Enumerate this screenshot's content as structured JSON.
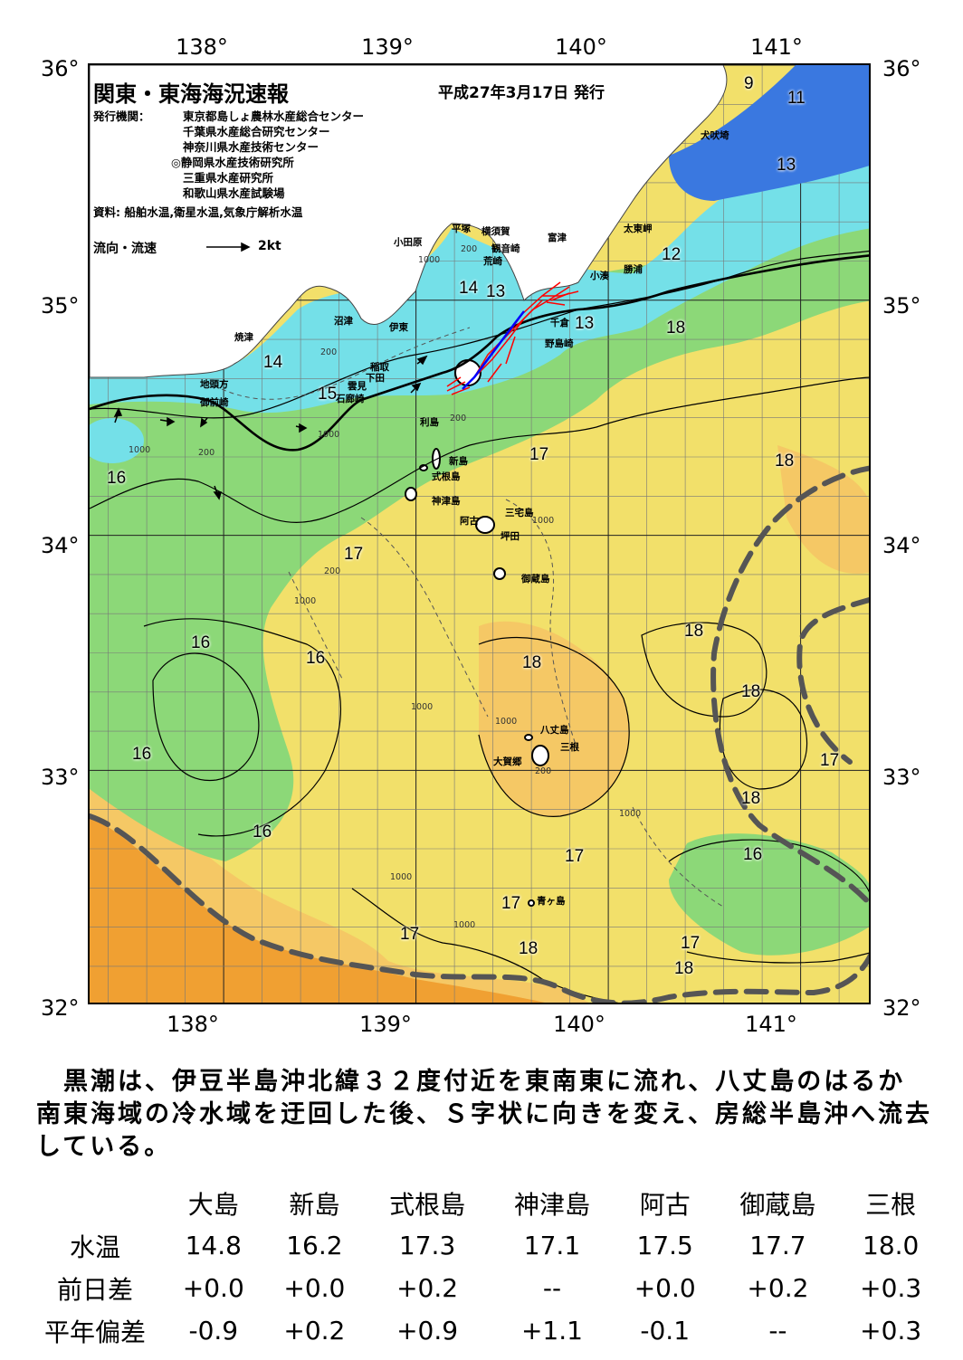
{
  "axes": {
    "lon_top": [
      "138°",
      "139°",
      "140°",
      "141°"
    ],
    "lon_bottom": [
      "138°",
      "139°",
      "140°",
      "141°"
    ],
    "lat_left": [
      "36°",
      "35°",
      "34°",
      "33°",
      "32°"
    ],
    "lat_right": [
      "36°",
      "35°",
      "34°",
      "33°",
      "32°"
    ]
  },
  "header": {
    "title": "関東・東海海況速報",
    "issue_date": "平成27年3月17日 発行",
    "issuer_label": "発行機関：",
    "issuers": [
      "東京都島しょ農林水産総合センター",
      "千葉県水産総合研究センター",
      "神奈川県水産技術センター",
      "◎静岡県水産技術研究所",
      "三重県水産研究所",
      "和歌山県水産試験場"
    ],
    "sources": "資料: 船舶水温,衛星水温,気象庁解析水温",
    "legend_label": "流向・流速",
    "legend_scale": "2kt"
  },
  "place_labels": [
    "犬吠埼",
    "太東岬",
    "勝浦",
    "小湊",
    "富津",
    "横須賀",
    "平塚",
    "観音崎",
    "荒崎",
    "小田原",
    "千倉",
    "野島崎",
    "沼津",
    "伊東",
    "焼津",
    "稲取",
    "下田",
    "雲見",
    "石廊崎",
    "地頭方",
    "御前崎",
    "利島",
    "新島",
    "式根島",
    "神津島",
    "三宅島",
    "阿古",
    "坪田",
    "御蔵島",
    "八丈島",
    "三根",
    "大賀郷",
    "青ヶ島"
  ],
  "isotherm_labels": [
    "9",
    "11",
    "13",
    "12",
    "13",
    "14",
    "13",
    "18",
    "14",
    "15",
    "17",
    "16",
    "18",
    "17",
    "16",
    "16",
    "18",
    "18",
    "18",
    "16",
    "16",
    "17",
    "18",
    "17",
    "17",
    "17",
    "18",
    "16",
    "17",
    "18"
  ],
  "depth_labels": [
    "200",
    "1000",
    "200",
    "200",
    "1000",
    "1000",
    "200",
    "200",
    "1000",
    "1000",
    "1000",
    "200",
    "1000",
    "1000",
    "1000",
    "1000"
  ],
  "colors": {
    "warmest": "#f0a032",
    "warm": "#f5c865",
    "mid": "#f2e06a",
    "cool": "#8cd878",
    "cold": "#74e0e8",
    "coldest": "#3a78e0",
    "kuroshio_axis": "#555555",
    "drifter_track": "#ff0000"
  },
  "summary": "　黒潮は、伊豆半島沖北緯３２度付近を東南東に流れ、八丈島のはるか南東海域の冷水域を迂回した後、Ｓ字状に向きを変え、房総半島沖へ流去している。",
  "table": {
    "columns": [
      "大島",
      "新島",
      "式根島",
      "神津島",
      "阿古",
      "御蔵島",
      "三根"
    ],
    "rows": [
      {
        "label": "水温",
        "values": [
          "14.8",
          "16.2",
          "17.3",
          "17.1",
          "17.5",
          "17.7",
          "18.0"
        ]
      },
      {
        "label": "前日差",
        "values": [
          "+0.0",
          "+0.0",
          "+0.2",
          "--",
          "+0.0",
          "+0.2",
          "+0.3"
        ]
      },
      {
        "label": "平年偏差",
        "values": [
          "-0.9",
          "+0.2",
          "+0.9",
          "+1.1",
          "-0.1",
          "--",
          "+0.3"
        ]
      }
    ]
  }
}
